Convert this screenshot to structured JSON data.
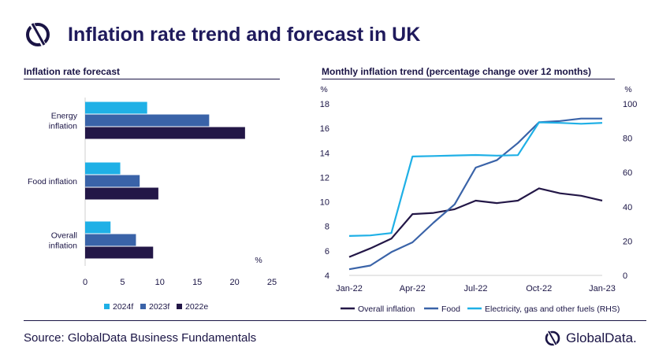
{
  "header": {
    "title": "Inflation rate trend and forecast in UK"
  },
  "colors": {
    "navy": "#1a1445",
    "light_blue": "#1fb0e6",
    "mid_blue": "#3a63a8",
    "dark_navy": "#231747"
  },
  "chart_data": [
    {
      "type": "bar",
      "orientation": "horizontal",
      "title": "Inflation rate forecast",
      "categories": [
        "Energy\ninflation",
        "Food inflation",
        "Overall\ninflation"
      ],
      "series": [
        {
          "name": "2024f",
          "color": "#1fb0e6",
          "values": [
            8.3,
            4.7,
            3.4
          ]
        },
        {
          "name": "2023f",
          "color": "#3a63a8",
          "values": [
            16.6,
            7.3,
            6.8
          ]
        },
        {
          "name": "2022e",
          "color": "#231747",
          "values": [
            21.4,
            9.8,
            9.1
          ]
        }
      ],
      "xlim": [
        0,
        25
      ],
      "xticks": [
        0,
        5,
        10,
        15,
        20,
        25
      ],
      "unit_label": "%",
      "legend": "bottom"
    },
    {
      "type": "line",
      "title": "Monthly inflation trend (percentage change over 12 months)",
      "x": [
        "Jan-22",
        "Feb-22",
        "Mar-22",
        "Apr-22",
        "May-22",
        "Jun-22",
        "Jul-22",
        "Aug-22",
        "Sep-22",
        "Oct-22",
        "Nov-22",
        "Dec-22",
        "Jan-23"
      ],
      "xticks": [
        "Jan-22",
        "Apr-22",
        "Jul-22",
        "Oct-22",
        "Jan-23"
      ],
      "ylim_left": [
        4,
        18
      ],
      "yticks_left": [
        4,
        6,
        8,
        10,
        12,
        14,
        16,
        18
      ],
      "left_unit": "%",
      "ylim_right": [
        0,
        100
      ],
      "yticks_right": [
        0,
        20,
        40,
        60,
        80,
        100
      ],
      "right_unit": "%",
      "series": [
        {
          "name": "Overall inflation",
          "axis": "left",
          "color": "#231747",
          "values": [
            5.5,
            6.2,
            7.0,
            9.0,
            9.1,
            9.4,
            10.1,
            9.9,
            10.1,
            11.1,
            10.7,
            10.5,
            10.1
          ]
        },
        {
          "name": "Food",
          "axis": "left",
          "color": "#3a63a8",
          "values": [
            4.5,
            4.8,
            5.9,
            6.7,
            8.3,
            9.8,
            12.8,
            13.4,
            14.8,
            16.5,
            16.6,
            16.8,
            16.8
          ]
        },
        {
          "name": "Electricity, gas and other fuels (RHS)",
          "axis": "right",
          "color": "#1fb0e6",
          "values": [
            23,
            23.3,
            24.7,
            69.3,
            69.6,
            69.9,
            70.2,
            69.8,
            70.1,
            89.2,
            88.9,
            88.4,
            88.9
          ]
        }
      ],
      "legend": "bottom"
    }
  ],
  "footer": {
    "source": "Source: GlobalData Business Fundamentals",
    "brand": "GlobalData."
  }
}
